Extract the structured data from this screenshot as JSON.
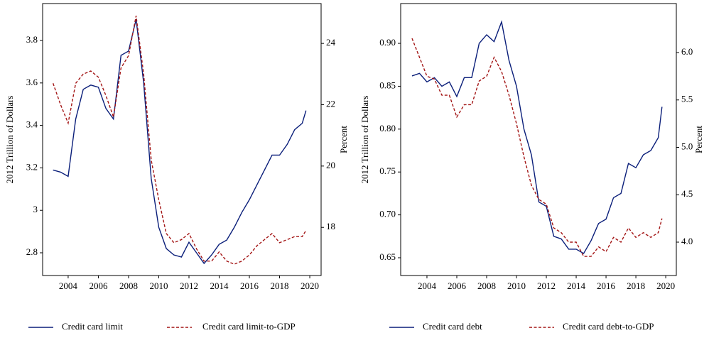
{
  "chart_data": [
    {
      "type": "line",
      "ylabel": "2012 Trillion of Dollars",
      "y2label": "Percent",
      "x": [
        2003,
        2003.5,
        2004,
        2004.5,
        2005,
        2005.5,
        2006,
        2006.5,
        2007,
        2007.5,
        2008,
        2008.5,
        2009,
        2009.5,
        2010,
        2010.5,
        2011,
        2011.5,
        2012,
        2012.5,
        2013,
        2013.5,
        2014,
        2014.5,
        2015,
        2015.5,
        2016,
        2016.5,
        2017,
        2017.5,
        2018,
        2018.5,
        2019,
        2019.5,
        2019.75
      ],
      "xlim": [
        2002.31,
        2020.75
      ],
      "xticks": [
        2004,
        2006,
        2008,
        2010,
        2012,
        2014,
        2016,
        2018,
        2020
      ],
      "ylim": [
        2.693,
        3.974
      ],
      "yticks": [
        2.8,
        3.0,
        3.2,
        3.4,
        3.6,
        3.8
      ],
      "y2lim": [
        16.43,
        25.3
      ],
      "y2ticks": [
        18,
        20,
        22,
        24
      ],
      "series": [
        {
          "name": "Credit card limit",
          "color": "#0b1f7a",
          "dashed": false,
          "values": [
            3.19,
            3.18,
            3.16,
            3.43,
            3.57,
            3.59,
            3.58,
            3.48,
            3.43,
            3.73,
            3.75,
            3.9,
            3.6,
            3.15,
            2.92,
            2.82,
            2.79,
            2.78,
            2.85,
            2.8,
            2.75,
            2.79,
            2.84,
            2.86,
            2.92,
            2.99,
            3.05,
            3.12,
            3.19,
            3.26,
            3.26,
            3.31,
            3.38,
            3.41,
            3.47
          ]
        },
        {
          "name": "Credit card limit-to-GDP",
          "color": "#a31515",
          "dashed": true,
          "axis": "y2",
          "values": [
            22.7,
            22.0,
            21.4,
            22.7,
            23.0,
            23.1,
            22.9,
            22.3,
            21.6,
            23.2,
            23.6,
            24.9,
            23.0,
            20.2,
            18.9,
            17.8,
            17.5,
            17.6,
            17.8,
            17.3,
            16.9,
            16.9,
            17.2,
            16.9,
            16.8,
            16.9,
            17.1,
            17.4,
            17.6,
            17.8,
            17.5,
            17.6,
            17.7,
            17.7,
            17.9
          ]
        }
      ]
    },
    {
      "type": "line",
      "ylabel": "2012 Trillion of Dollars",
      "y2label": "Percent",
      "x": [
        2003,
        2003.5,
        2004,
        2004.5,
        2005,
        2005.5,
        2006,
        2006.5,
        2007,
        2007.5,
        2008,
        2008.5,
        2009,
        2009.5,
        2010,
        2010.5,
        2011,
        2011.5,
        2012,
        2012.5,
        2013,
        2013.5,
        2014,
        2014.5,
        2015,
        2015.5,
        2016,
        2016.5,
        2017,
        2017.5,
        2018,
        2018.5,
        2019,
        2019.5,
        2019.75
      ],
      "xlim": [
        2002.24,
        2020.71
      ],
      "xticks": [
        2004,
        2006,
        2008,
        2010,
        2012,
        2014,
        2016,
        2018,
        2020
      ],
      "ylim": [
        0.6293,
        0.9464
      ],
      "yticks": [
        0.65,
        {
          "value": 0.7,
          "label": "0.70"
        },
        0.75,
        {
          "value": 0.8,
          "label": "0.80"
        },
        0.85,
        {
          "value": 0.9,
          "label": "0.90"
        }
      ],
      "y2lim": [
        3.648,
        6.517
      ],
      "y2ticks": [
        {
          "value": 4,
          "label": "4.0"
        },
        4.5,
        {
          "value": 5,
          "label": "5.0"
        },
        5.5,
        {
          "value": 6,
          "label": "6.0"
        }
      ],
      "series": [
        {
          "name": "Credit card debt",
          "color": "#0b1f7a",
          "dashed": false,
          "values": [
            0.862,
            0.865,
            0.855,
            0.86,
            0.85,
            0.855,
            0.838,
            0.86,
            0.86,
            0.9,
            0.91,
            0.902,
            0.925,
            0.88,
            0.85,
            0.8,
            0.77,
            0.715,
            0.71,
            0.675,
            0.672,
            0.66,
            0.66,
            0.655,
            0.67,
            0.69,
            0.695,
            0.72,
            0.725,
            0.76,
            0.755,
            0.77,
            0.775,
            0.79,
            0.826
          ]
        },
        {
          "name": "Credit card debt-to-GDP",
          "color": "#a31515",
          "dashed": true,
          "axis": "y2",
          "values": [
            6.15,
            5.95,
            5.75,
            5.72,
            5.55,
            5.55,
            5.32,
            5.45,
            5.45,
            5.7,
            5.75,
            5.95,
            5.8,
            5.55,
            5.25,
            4.9,
            4.6,
            4.45,
            4.4,
            4.15,
            4.1,
            4.0,
            4.0,
            3.85,
            3.85,
            3.95,
            3.9,
            4.05,
            4.0,
            4.15,
            4.05,
            4.1,
            4.05,
            4.1,
            4.25
          ]
        }
      ]
    }
  ]
}
